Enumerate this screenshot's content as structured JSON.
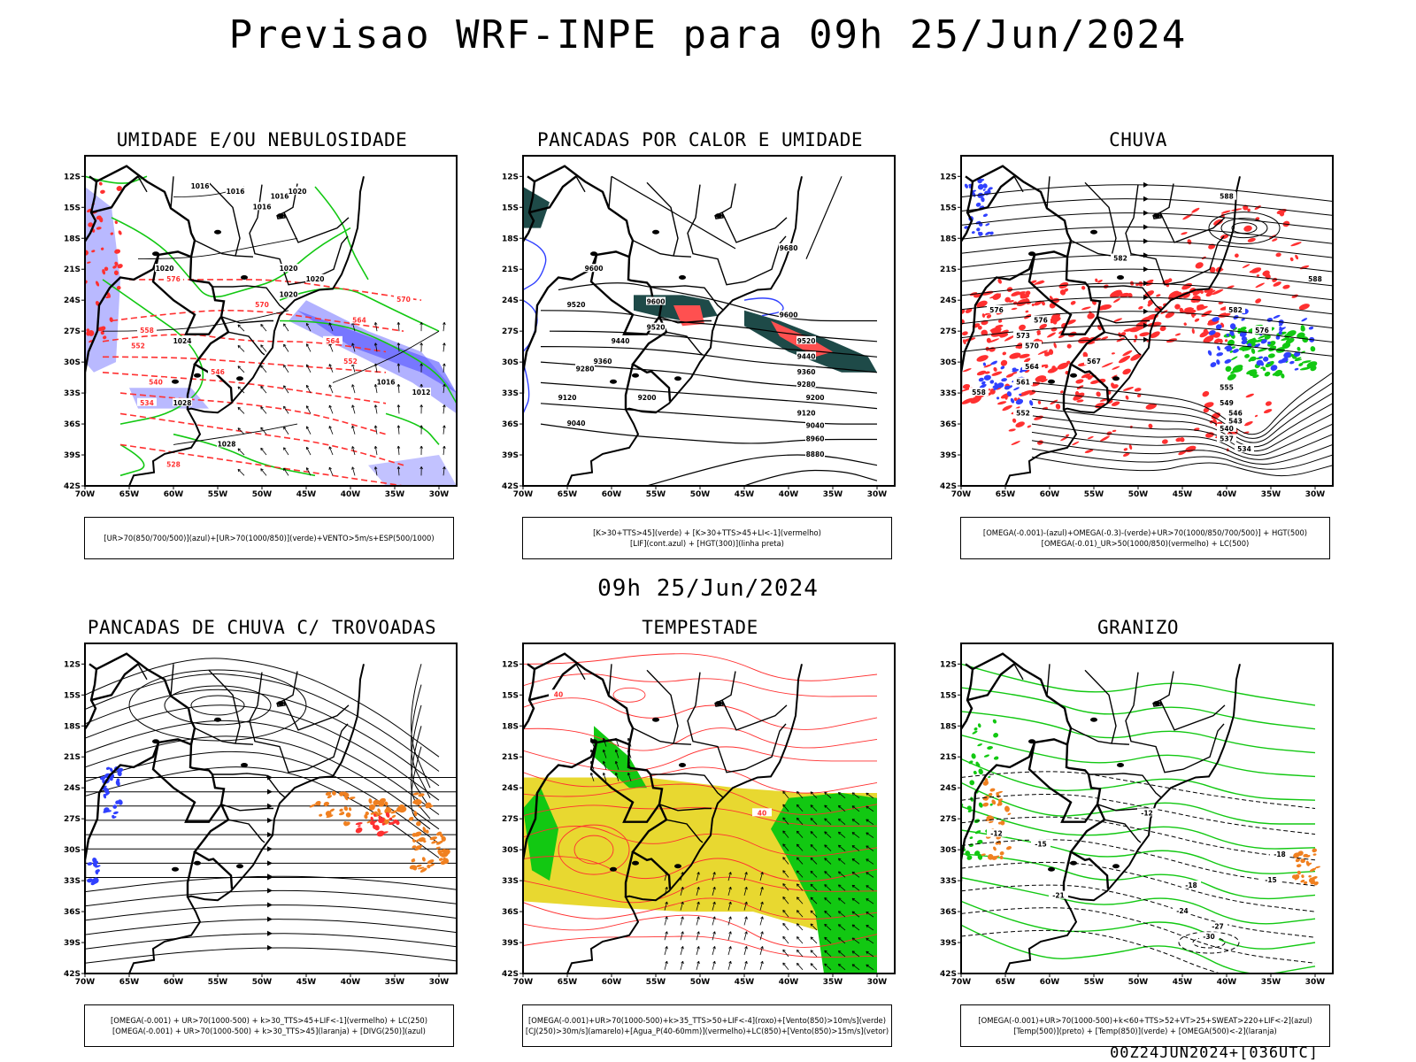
{
  "header": {
    "title": "Previsao WRF-INPE  para 09h 25/Jun/2024",
    "subtitle": "09h 25/Jun/2024",
    "run_stamp": "00Z24JUN2024+[036UTC]"
  },
  "axes": {
    "lat_ticks": [
      "12S",
      "15S",
      "18S",
      "21S",
      "24S",
      "27S",
      "30S",
      "33S",
      "36S",
      "39S",
      "42S"
    ],
    "lon_ticks": [
      "70W",
      "65W",
      "60W",
      "55W",
      "50W",
      "45W",
      "40W",
      "35W",
      "30W"
    ]
  },
  "colors": {
    "blue": "#3040ff",
    "lavender": "#a8a8ff",
    "green": "#12c812",
    "red": "#ff3030",
    "orange": "#f08020",
    "yellow": "#e8d830",
    "darkteal": "#1e4a48",
    "salmon": "#ff5050"
  },
  "panels": [
    {
      "id": "umidade",
      "title": "UMIDADE E/OU NEBULOSIDADE",
      "legend": [
        "[UR>70(850/700/500)](azul)+[UR>70(1000/850)](verde)+VENTO>5m/s+ESP(500/1000)"
      ],
      "labels": [
        "1016",
        "1016",
        "1016",
        "1016",
        "1020",
        "1020",
        "1020",
        "1020",
        "1020",
        "1024",
        "1028",
        "1028",
        "1012",
        "1016",
        "576",
        "570",
        "564",
        "558",
        "552",
        "546",
        "540",
        "534",
        "528"
      ]
    },
    {
      "id": "pancadas-calor",
      "title": "PANCADAS POR CALOR E UMIDADE",
      "legend": [
        "[K>30+TTS>45](verde) + [K>30+TTS>45+LI<-1](vermelho)",
        "[LIF](cont.azul) + [HGT(300)](linha preta)"
      ],
      "labels": [
        "9680",
        "9600",
        "9600",
        "9600",
        "9520",
        "9520",
        "9520",
        "9440",
        "9440",
        "9360",
        "9360",
        "9280",
        "9280",
        "9200",
        "9200",
        "9120",
        "9120",
        "9040",
        "9040",
        "8960",
        "8880"
      ]
    },
    {
      "id": "chuva",
      "title": "CHUVA",
      "legend": [
        "[OMEGA(-0.001)-(azul)+OMEGA(-0.3)-(verde)+UR>70(1000/850/700/500)] + HGT(500)",
        "[OMEGA(-0.01)_UR>50(1000/850)(vermelho) + LC(500)"
      ],
      "labels": [
        "588",
        "588",
        "582",
        "582",
        "576",
        "576",
        "576",
        "573",
        "570",
        "567",
        "564",
        "561",
        "558",
        "555",
        "552",
        "549",
        "546",
        "543",
        "540",
        "537",
        "534"
      ]
    },
    {
      "id": "pancadas-trovoadas",
      "title": "PANCADAS DE CHUVA C/ TROVOADAS",
      "legend": [
        "[OMEGA(-0.001) + UR>70(1000-500) + k>30_TTS>45+LIF<-1](vermelho) + LC(250)",
        "[OMEGA(-0.001) + UR>70(1000-500) + k>30_TTS>45](laranja) + [DIVG(250)](azul)"
      ],
      "labels": []
    },
    {
      "id": "tempestade",
      "title": "TEMPESTADE",
      "legend": [
        "[OMEGA(-0.001)+UR>70(1000-500)+k>35_TTS>50+LIF<-4](roxo)+[Vento(850)>10m/s](verde)",
        "[CJ(250)>30m/s](amarelo)+[Agua_P(40-60mm)](vermelho)+LC(850)+[Vento(850)>15m/s](vetor)"
      ],
      "labels": [
        "40",
        "40"
      ]
    },
    {
      "id": "granizo",
      "title": "GRANIZO",
      "legend": [
        "[OMEGA(-0.001)+UR>70(1000-500)+k<60+TTS>52+VT>25+SWEAT>220+LIF<-2](azul)",
        "[Temp(500)](preto) + [Temp(850)](verde) + [OMEGA(500)<-2](laranja)"
      ],
      "labels": [
        "-12",
        "-12",
        "-15",
        "-15",
        "-18",
        "-18",
        "-21",
        "-24",
        "-27",
        "-30"
      ]
    }
  ]
}
